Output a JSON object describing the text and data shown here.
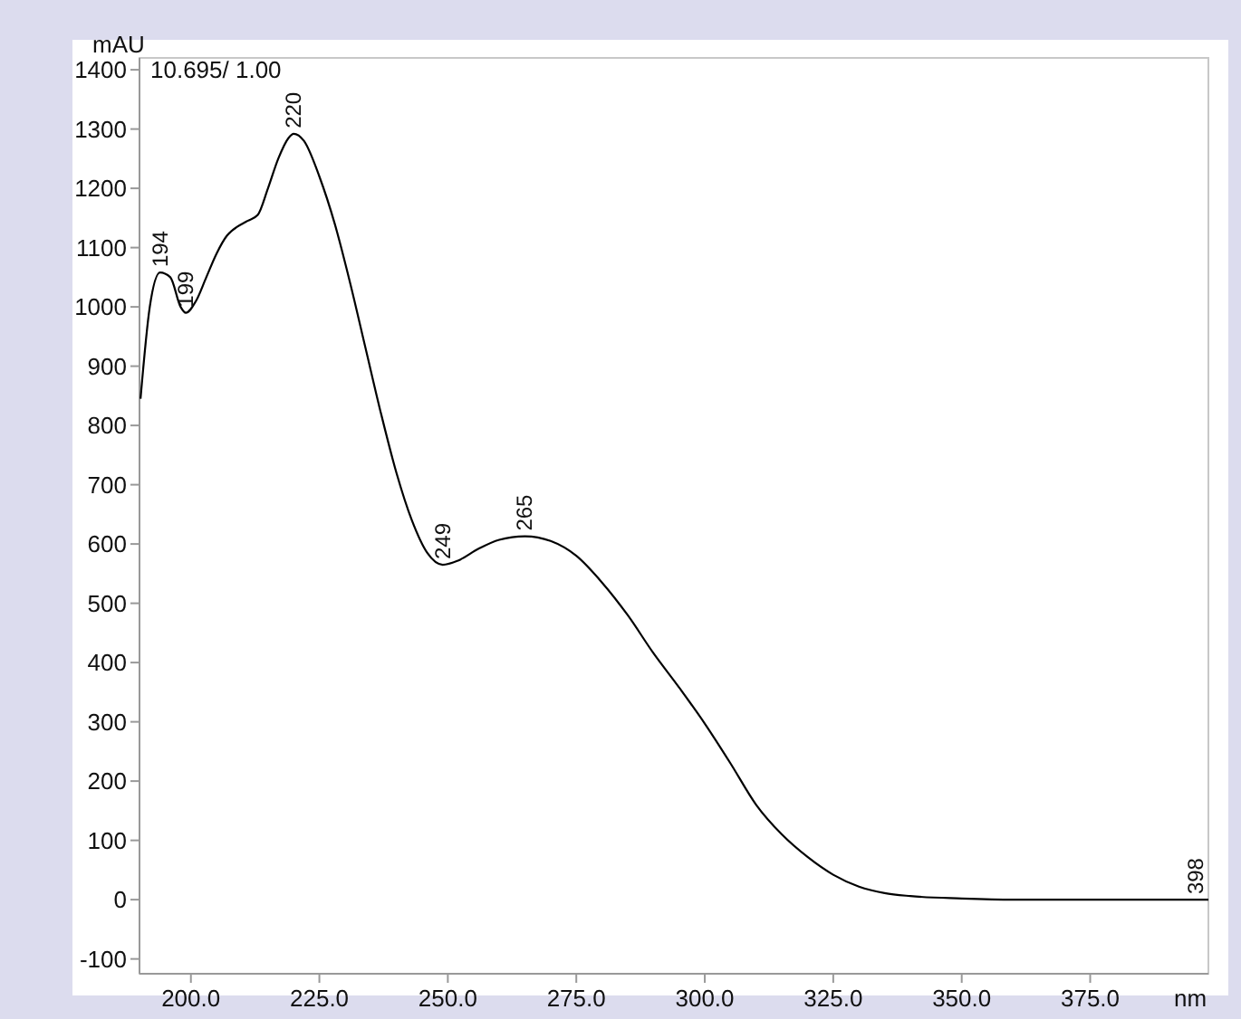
{
  "chart_data": {
    "type": "line",
    "xlabel": "nm",
    "ylabel": "mAU",
    "annotations": [
      "10.695/ 1.00",
      {
        "text": "194",
        "x": 194,
        "y": 1058
      },
      {
        "text": "199",
        "x": 199,
        "y": 990
      },
      {
        "text": "220",
        "x": 220,
        "y": 1292
      },
      {
        "text": "249",
        "x": 249,
        "y": 565
      },
      {
        "text": "265",
        "x": 265,
        "y": 613
      },
      {
        "text": "398",
        "x": 398,
        "y": 0
      }
    ],
    "xlim": [
      190,
      398
    ],
    "ylim": [
      -125,
      1420
    ],
    "xticks": [
      {
        "value": 200,
        "label": "200.0"
      },
      {
        "value": 225,
        "label": "225.0"
      },
      {
        "value": 250,
        "label": "250.0"
      },
      {
        "value": 275,
        "label": "275.0"
      },
      {
        "value": 300,
        "label": "300.0"
      },
      {
        "value": 325,
        "label": "325.0"
      },
      {
        "value": 350,
        "label": "350.0"
      },
      {
        "value": 375,
        "label": "375.0"
      }
    ],
    "yticks": [
      -100,
      0,
      100,
      200,
      300,
      400,
      500,
      600,
      700,
      800,
      900,
      1000,
      1100,
      1200,
      1300,
      1400
    ],
    "grid": false,
    "series": [
      {
        "color": "#000000",
        "x": [
          190.2,
          192,
          194,
          196,
          198,
          199,
          201,
          203,
          205,
          207,
          209,
          211,
          213,
          215,
          217,
          219,
          220,
          222,
          225,
          228,
          231,
          234,
          237,
          240,
          243,
          246,
          249,
          252,
          256,
          260,
          265,
          270,
          275,
          280,
          285,
          290,
          295,
          300,
          305,
          310,
          315,
          320,
          325,
          330,
          335,
          340,
          350,
          360,
          380,
          398
        ],
        "values": [
          845,
          1000,
          1058,
          1050,
          1000,
          990,
          1010,
          1050,
          1090,
          1120,
          1135,
          1145,
          1155,
          1200,
          1250,
          1285,
          1292,
          1280,
          1220,
          1140,
          1040,
          930,
          820,
          720,
          640,
          585,
          565,
          572,
          592,
          607,
          613,
          605,
          580,
          535,
          480,
          416,
          358,
          297,
          230,
          160,
          110,
          72,
          42,
          22,
          11,
          6,
          2,
          0,
          0,
          0
        ]
      }
    ]
  }
}
